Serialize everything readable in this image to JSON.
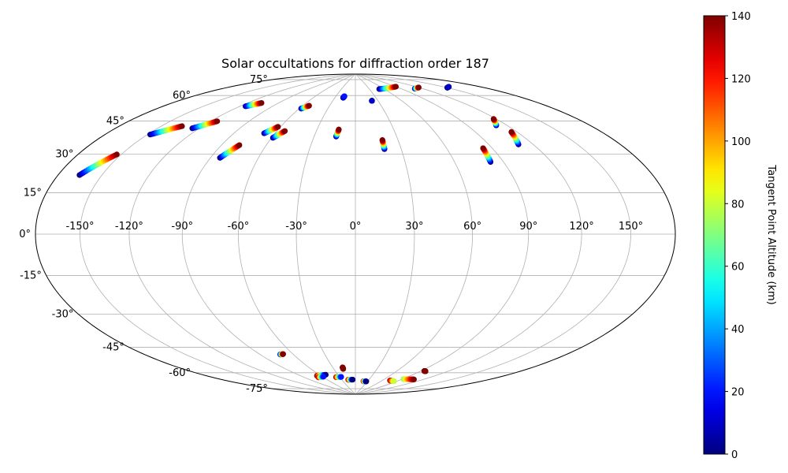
{
  "chart_data": {
    "type": "scatter",
    "projection": "hammer",
    "title": "Solar occultations for diffraction order 187",
    "lon_ticks": [
      -150,
      -120,
      -90,
      -60,
      -30,
      0,
      30,
      60,
      90,
      120,
      150
    ],
    "lon_tick_labels": [
      "-150°",
      "-120°",
      "-90°",
      "-60°",
      "-30°",
      "0°",
      "30°",
      "60°",
      "90°",
      "120°",
      "150°"
    ],
    "lat_ticks": [
      -75,
      -60,
      -45,
      -30,
      -15,
      0,
      15,
      30,
      45,
      60,
      75
    ],
    "lat_tick_labels": [
      "-75°",
      "-60°",
      "-45°",
      "-30°",
      "-15°",
      "0°",
      "15°",
      "30°",
      "45°",
      "60°",
      "75°"
    ],
    "grid": true,
    "colorbar": {
      "label": "Tangent Point Altitude (km)",
      "min": 0,
      "max": 140,
      "ticks": [
        0,
        20,
        40,
        60,
        80,
        100,
        120,
        140
      ],
      "tick_labels": [
        "0",
        "20",
        "40",
        "60",
        "80",
        "100",
        "120",
        "140"
      ],
      "colormap": "jet",
      "position": "right"
    },
    "tracks": [
      {
        "lon": [
          -165,
          -153
        ],
        "lat": [
          23,
          33
        ],
        "alt": [
          0,
          140
        ]
      },
      {
        "lon": [
          -148,
          -135
        ],
        "lat": [
          43,
          49
        ],
        "alt": [
          0,
          140
        ]
      },
      {
        "lon": [
          -125,
          -115
        ],
        "lat": [
          49,
          54
        ],
        "alt": [
          0,
          140
        ]
      },
      {
        "lon": [
          -115,
          -107
        ],
        "lat": [
          63,
          66
        ],
        "alt": [
          0,
          140
        ]
      },
      {
        "lon": [
          -84,
          -78
        ],
        "lat": [
          37,
          44
        ],
        "alt": [
          0,
          140
        ]
      },
      {
        "lon": [
          -68,
          -62
        ],
        "lat": [
          51,
          55
        ],
        "alt": [
          0,
          140
        ]
      },
      {
        "lon": [
          -59,
          -54
        ],
        "lat": [
          49,
          53
        ],
        "alt": [
          0,
          140
        ]
      },
      {
        "lon": [
          -58,
          -53
        ],
        "lat": [
          66,
          68
        ],
        "alt": [
          0,
          140
        ]
      },
      {
        "lon": [
          -18,
          -17
        ],
        "lat": [
          74,
          75
        ],
        "alt": [
          0,
          20
        ]
      },
      {
        "lon": [
          -14,
          -13
        ],
        "lat": [
          51,
          55
        ],
        "alt": [
          0,
          140
        ]
      },
      {
        "lon": [
          22,
          22
        ],
        "lat": [
          72,
          72
        ],
        "alt": [
          0,
          10
        ]
      },
      {
        "lon": [
          19,
          19
        ],
        "lat": [
          44,
          49
        ],
        "alt": [
          0,
          140
        ]
      },
      {
        "lon": [
          50,
          90
        ],
        "lat": [
          79,
          79
        ],
        "alt": [
          0,
          140
        ]
      },
      {
        "lon": [
          110,
          120
        ],
        "lat": [
          76,
          76
        ],
        "alt": [
          0,
          140
        ]
      },
      {
        "lon": [
          150,
          155
        ],
        "lat": [
          72,
          72
        ],
        "alt": [
          0,
          10
        ]
      },
      {
        "lon": [
          82,
          84
        ],
        "lat": [
          35,
          42
        ],
        "alt": [
          0,
          140
        ]
      },
      {
        "lon": [
          112,
          118
        ],
        "lat": [
          52,
          55
        ],
        "alt": [
          0,
          140
        ]
      },
      {
        "lon": [
          110,
          116
        ],
        "lat": [
          42,
          48
        ],
        "alt": [
          0,
          140
        ]
      },
      {
        "lon": [
          -72,
          -69
        ],
        "lat": [
          -62,
          -62
        ],
        "alt": [
          0,
          140
        ]
      },
      {
        "lon": [
          -66,
          -50
        ],
        "lat": [
          -76,
          -76
        ],
        "alt": [
          140,
          0
        ]
      },
      {
        "lon": [
          -68,
          -58
        ],
        "lat": [
          -77,
          -77
        ],
        "alt": [
          140,
          20
        ]
      },
      {
        "lon": [
          -37,
          -27
        ],
        "lat": [
          -78,
          -78
        ],
        "alt": [
          140,
          20
        ]
      },
      {
        "lon": [
          -17,
          -17
        ],
        "lat": [
          -73,
          -72
        ],
        "alt": [
          140,
          140
        ]
      },
      {
        "lon": [
          -16,
          -6
        ],
        "lat": [
          -80,
          -80
        ],
        "alt": [
          140,
          0
        ]
      },
      {
        "lon": [
          20,
          27
        ],
        "lat": [
          -81,
          -81
        ],
        "alt": [
          140,
          0
        ]
      },
      {
        "lon": [
          75,
          85
        ],
        "lat": [
          -79,
          -79
        ],
        "alt": [
          140,
          80
        ]
      },
      {
        "lon": [
          92,
          108
        ],
        "lat": [
          -77,
          -76
        ],
        "alt": [
          70,
          140
        ]
      },
      {
        "lon": [
          94,
          96
        ],
        "lat": [
          -71,
          -71
        ],
        "alt": [
          140,
          140
        ]
      }
    ]
  }
}
